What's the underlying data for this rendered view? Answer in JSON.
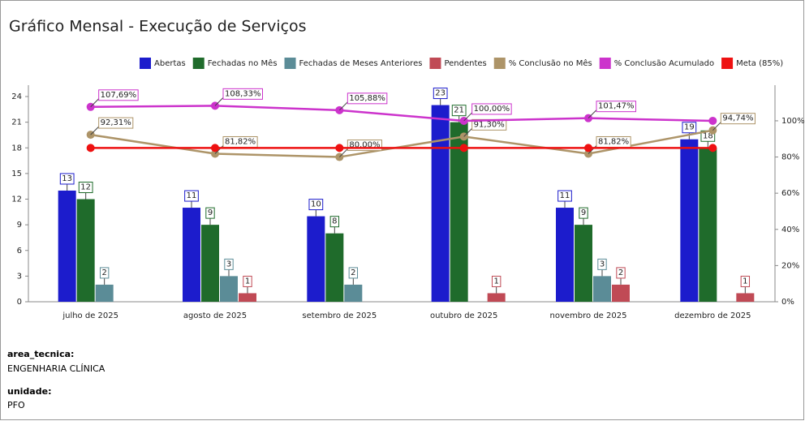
{
  "chart_data": {
    "type": "bar_line",
    "title": "Gráfico Mensal - Execução de Serviços",
    "categories": [
      "julho de 2025",
      "agosto de 2025",
      "setembro de 2025",
      "outubro de 2025",
      "novembro de 2025",
      "dezembro de 2025"
    ],
    "series": [
      {
        "name": "Abertas",
        "color": "#1c1ccc",
        "kind": "bar",
        "values": [
          13,
          11,
          10,
          23,
          11,
          19
        ]
      },
      {
        "name": "Fechadas no Mês",
        "color": "#1f6b2b",
        "kind": "bar",
        "values": [
          12,
          9,
          8,
          21,
          9,
          18
        ]
      },
      {
        "name": "Fechadas de Meses Anteriores",
        "color": "#5b8c97",
        "kind": "bar",
        "values": [
          2,
          3,
          2,
          null,
          3,
          null
        ]
      },
      {
        "name": "Pendentes",
        "color": "#c04a55",
        "kind": "bar",
        "values": [
          null,
          1,
          null,
          1,
          2,
          1
        ]
      },
      {
        "name": "% Conclusão no Mês",
        "color": "#ad9468",
        "kind": "line",
        "axis": "y2",
        "values": [
          92.31,
          81.82,
          80.0,
          91.3,
          81.82,
          94.74
        ],
        "value_labels": [
          "92,31%",
          "81,82%",
          "80,00%",
          "91,30%",
          "81,82%",
          "94,74%"
        ]
      },
      {
        "name": "% Conclusão Acumulado",
        "color": "#cc33cc",
        "kind": "line",
        "axis": "y2",
        "values": [
          107.69,
          108.33,
          105.88,
          100.0,
          101.47,
          100.0
        ],
        "value_labels": [
          "107,69%",
          "108,33%",
          "105,88%",
          "100,00%",
          "101,47%",
          null
        ]
      },
      {
        "name": "Meta (85%)",
        "color": "#ee1111",
        "kind": "line",
        "axis": "y2",
        "values": [
          85,
          85,
          85,
          85,
          85,
          85
        ]
      }
    ],
    "ylim": [
      0,
      25.33
    ],
    "yticks": [
      0,
      3,
      6,
      9,
      12,
      15,
      18,
      21,
      24
    ],
    "y2lim": [
      0,
      119.7
    ],
    "y2ticks": [
      {
        "value": 0,
        "label": "0%"
      },
      {
        "value": 20,
        "label": "20%"
      },
      {
        "value": 40,
        "label": "40%"
      },
      {
        "value": 60,
        "label": "60%"
      },
      {
        "value": 80,
        "label": "80%"
      },
      {
        "value": 100,
        "label": "100%"
      }
    ],
    "grid": false
  },
  "details": [
    {
      "label": "area_tecnica:",
      "value": "ENGENHARIA CLÍNICA"
    },
    {
      "label": "unidade:",
      "value": "PFO"
    }
  ]
}
